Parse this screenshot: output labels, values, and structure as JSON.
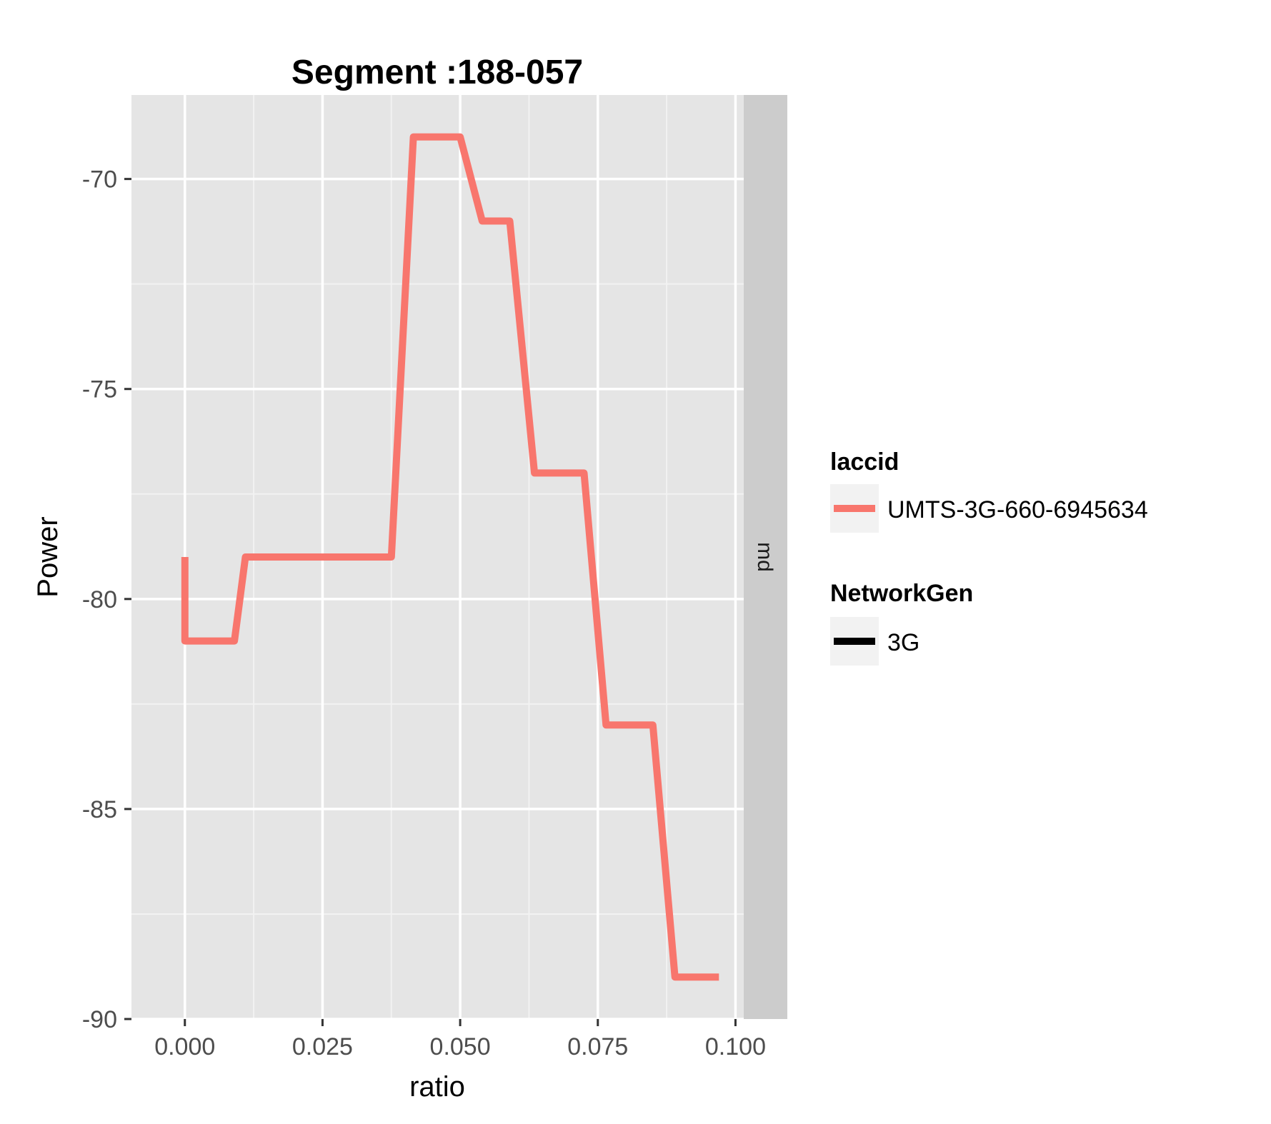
{
  "chart_data": {
    "type": "line",
    "title": "Segment :188-057",
    "xlabel": "ratio",
    "ylabel": "Power",
    "xlim": [
      -0.0097,
      0.1015
    ],
    "ylim": [
      -90,
      -68
    ],
    "x_ticks": [
      "0.000",
      "0.025",
      "0.050",
      "0.075",
      "0.100"
    ],
    "x_tick_values": [
      0,
      0.025,
      0.05,
      0.075,
      0.1
    ],
    "y_ticks": [
      "-70",
      "-75",
      "-80",
      "-85",
      "-90"
    ],
    "y_tick_values": [
      -70,
      -75,
      -80,
      -85,
      -90
    ],
    "grid": true,
    "facet_label": "md",
    "series": [
      {
        "name": "UMTS-3G-660-6945634",
        "color": "#F8766D",
        "x": [
          0.0,
          0.0,
          0.009,
          0.011,
          0.0375,
          0.0415,
          0.05,
          0.054,
          0.059,
          0.0635,
          0.0725,
          0.0765,
          0.085,
          0.089,
          0.097
        ],
        "y": [
          -79,
          -81,
          -81,
          -79,
          -79,
          -69,
          -69,
          -71,
          -71,
          -77,
          -77,
          -83,
          -83,
          -89,
          -89
        ]
      }
    ],
    "legend": {
      "placement": "right",
      "groups": [
        {
          "title": "laccid",
          "items": [
            {
              "label": "UMTS-3G-660-6945634",
              "color": "#F8766D"
            }
          ]
        },
        {
          "title": "NetworkGen",
          "items": [
            {
              "label": "3G",
              "color": "#000000"
            }
          ]
        }
      ]
    }
  }
}
